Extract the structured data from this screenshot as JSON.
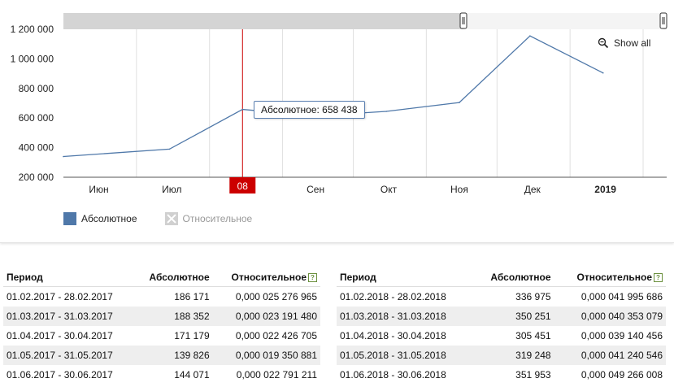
{
  "chart": {
    "show_all_label": "Show all",
    "tooltip_label": "Абсолютное: 658 438",
    "highlight_label": "08",
    "legend": [
      {
        "label": "Абсолютное",
        "color": "#4f78a9",
        "active": true
      },
      {
        "label": "Относительное",
        "color": "#d0d0d0",
        "active": false
      }
    ],
    "colors": {
      "line": "#4f78a9",
      "grid": "#e0e0e0",
      "highlight": "#cc0000",
      "navigator": "#d4d4d4"
    }
  },
  "chart_data": {
    "type": "line",
    "title": "",
    "xlabel": "",
    "ylabel": "",
    "x_ticks": [
      "Июн",
      "Июл",
      "Авг",
      "Сен",
      "Окт",
      "Ноя",
      "Дек",
      "2019"
    ],
    "y_ticks": [
      "1 200 000",
      "1 000 000",
      "800 000",
      "600 000",
      "400 000",
      "200 000"
    ],
    "y_tick_values": [
      1200000,
      1000000,
      800000,
      600000,
      400000,
      200000
    ],
    "ylim": [
      200000,
      1200000
    ],
    "series": [
      {
        "values": [
          {
            "x": "2018-05-31",
            "y": 340000
          },
          {
            "x": "2018-07-15",
            "y": 390000
          },
          {
            "x": "2018-08-15",
            "y": 658438
          },
          {
            "x": "2018-09-15",
            "y": 615000
          },
          {
            "x": "2018-10-15",
            "y": 645000
          },
          {
            "x": "2018-11-15",
            "y": 705000
          },
          {
            "x": "2018-12-15",
            "y": 1155000
          },
          {
            "x": "2019-01-15",
            "y": 905000
          }
        ]
      }
    ],
    "highlight_x": "2018-08-15",
    "grid": true
  },
  "table_left": {
    "headers": {
      "period": "Период",
      "absolute": "Абсолютное",
      "relative": "Относительное",
      "help": "?"
    },
    "rows": [
      {
        "period": "01.02.2017 - 28.02.2017",
        "absolute": "186 171",
        "relative": "0,000 025 276 965"
      },
      {
        "period": "01.03.2017 - 31.03.2017",
        "absolute": "188 352",
        "relative": "0,000 023 191 480"
      },
      {
        "period": "01.04.2017 - 30.04.2017",
        "absolute": "171 179",
        "relative": "0,000 022 426 705"
      },
      {
        "period": "01.05.2017 - 31.05.2017",
        "absolute": "139 826",
        "relative": "0,000 019 350 881"
      },
      {
        "period": "01.06.2017 - 30.06.2017",
        "absolute": "144 071",
        "relative": "0,000 022 791 211"
      }
    ]
  },
  "table_right": {
    "headers": {
      "period": "Период",
      "absolute": "Абсолютное",
      "relative": "Относительное",
      "help": "?"
    },
    "rows": [
      {
        "period": "01.02.2018 - 28.02.2018",
        "absolute": "336 975",
        "relative": "0,000 041 995 686"
      },
      {
        "period": "01.03.2018 - 31.03.2018",
        "absolute": "350 251",
        "relative": "0,000 040 353 079"
      },
      {
        "period": "01.04.2018 - 30.04.2018",
        "absolute": "305 451",
        "relative": "0,000 039 140 456"
      },
      {
        "period": "01.05.2018 - 31.05.2018",
        "absolute": "319 248",
        "relative": "0,000 041 240 546"
      },
      {
        "period": "01.06.2018 - 30.06.2018",
        "absolute": "351 953",
        "relative": "0,000 049 266 008"
      }
    ]
  }
}
